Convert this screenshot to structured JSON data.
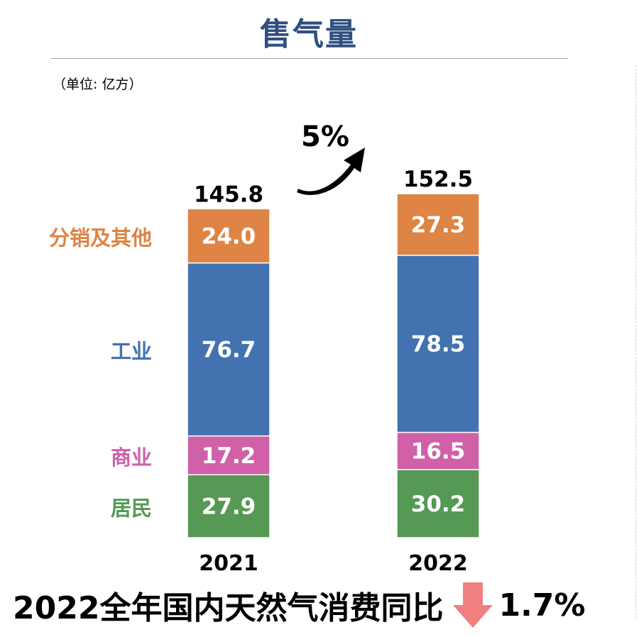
{
  "header": {
    "title": "售气量",
    "unit": "（单位: 亿方）"
  },
  "growth": {
    "label": "5%",
    "arrow_icon": "curved-up-arrow-icon"
  },
  "chart_data": {
    "type": "bar",
    "stacked": true,
    "categories": [
      "2021",
      "2022"
    ],
    "series": [
      {
        "name": "居民",
        "values": [
          27.9,
          30.2
        ],
        "color": "#559955"
      },
      {
        "name": "商业",
        "values": [
          17.2,
          16.5
        ],
        "color": "#d060a8"
      },
      {
        "name": "工业",
        "values": [
          76.7,
          78.5
        ],
        "color": "#4272b0"
      },
      {
        "name": "分销及其他",
        "values": [
          24.0,
          27.3
        ],
        "color": "#de8444"
      }
    ],
    "totals": [
      145.8,
      152.5
    ],
    "legend_placement": "left",
    "grid": false
  },
  "footer": {
    "text": "2022全年国内天然气消费同比",
    "change": "1.7%",
    "arrow_icon": "down-arrow-icon",
    "arrow_color": "#f08080"
  }
}
